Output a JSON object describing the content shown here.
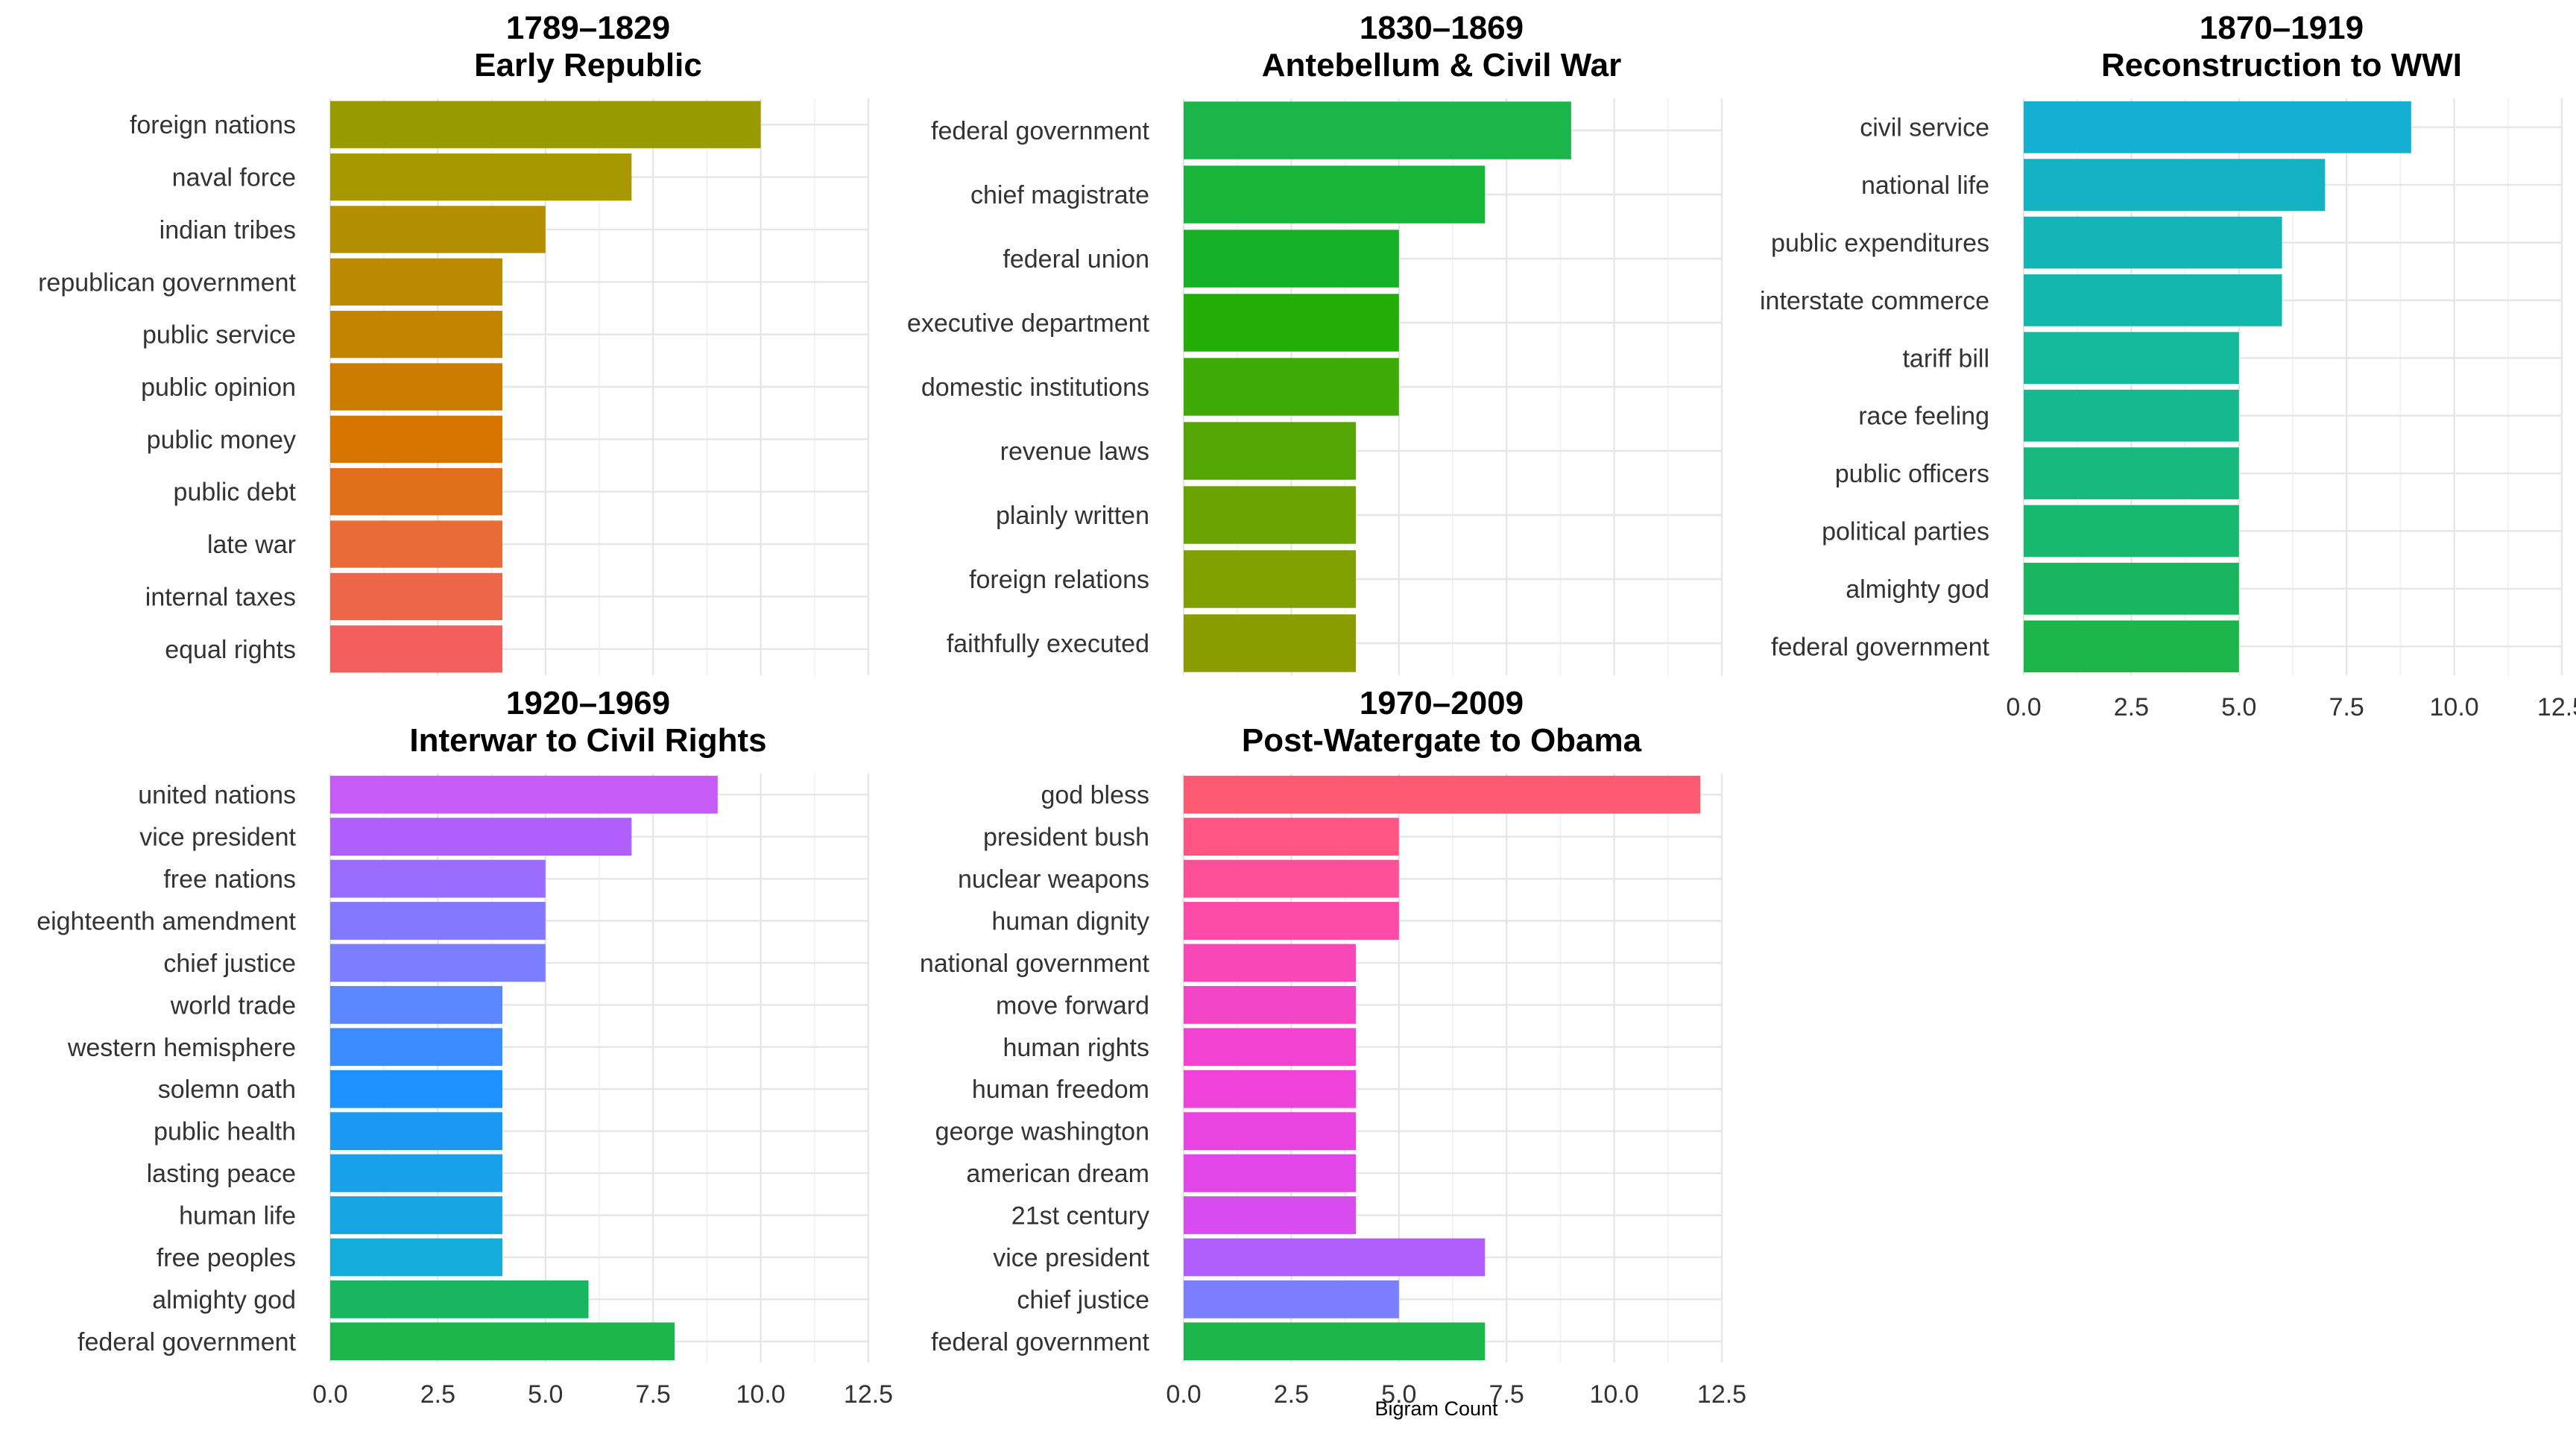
{
  "chart_data": {
    "type": "bar",
    "orientation": "horizontal",
    "xlabel": "Bigram Count",
    "xlim": [
      0,
      12.5
    ],
    "xticks": [
      "0.0",
      "2.5",
      "5.0",
      "7.5",
      "10.0",
      "12.5"
    ],
    "grid": true,
    "legend": "none",
    "panels": [
      {
        "title_line1": "1789–1829",
        "title_line2": "Early Republic",
        "show_x_axis": false,
        "categories": [
          "foreign nations",
          "naval force",
          "indian tribes",
          "republican government",
          "public service",
          "public opinion",
          "public money",
          "public debt",
          "late war",
          "internal taxes",
          "equal rights"
        ],
        "values": [
          10,
          7,
          5,
          4,
          4,
          4,
          4,
          4,
          4,
          4,
          4
        ],
        "colors": [
          "#999900",
          "#A89800",
          "#B38F00",
          "#BC8A00",
          "#C38400",
          "#CC7C00",
          "#D67500",
          "#E16E1A",
          "#E86B38",
          "#EE6649",
          "#F25F5C"
        ]
      },
      {
        "title_line1": "1830–1869",
        "title_line2": "Antebellum & Civil War",
        "show_x_axis": false,
        "categories": [
          "federal government",
          "chief magistrate",
          "federal union",
          "executive department",
          "domestic institutions",
          "revenue laws",
          "plainly written",
          "foreign relations",
          "faithfully executed"
        ],
        "values": [
          9,
          7,
          5,
          5,
          5,
          4,
          4,
          4,
          4
        ],
        "colors": [
          "#1BB54C",
          "#19B53A",
          "#16B026",
          "#22AE06",
          "#3DAA06",
          "#55A505",
          "#6BA300",
          "#7FA000",
          "#8B9C00"
        ]
      },
      {
        "title_line1": "1870–1919",
        "title_line2": "Reconstruction to WWI",
        "show_x_axis": true,
        "categories": [
          "civil service",
          "national life",
          "public expenditures",
          "interstate commerce",
          "tariff bill",
          "race feeling",
          "public officers",
          "political parties",
          "almighty god",
          "federal government"
        ],
        "values": [
          9,
          7,
          6,
          6,
          5,
          5,
          5,
          5,
          5,
          5
        ],
        "colors": [
          "#14AFD2",
          "#14B2C3",
          "#14B5B7",
          "#14B7AB",
          "#14B99C",
          "#16B98E",
          "#17B980",
          "#17B870",
          "#18B65E",
          "#1BB54C"
        ]
      },
      {
        "title_line1": "1920–1969",
        "title_line2": "Interwar to Civil Rights",
        "show_x_axis": true,
        "categories": [
          "united nations",
          "vice president",
          "free nations",
          "eighteenth amendment",
          "chief justice",
          "world trade",
          "western hemisphere",
          "solemn oath",
          "public health",
          "lasting peace",
          "human life",
          "free peoples",
          "almighty god",
          "federal government"
        ],
        "values": [
          9,
          7,
          5,
          5,
          5,
          4,
          4,
          4,
          4,
          4,
          4,
          4,
          6,
          8
        ],
        "colors": [
          "#C65BF5",
          "#B05EFC",
          "#9A6DFF",
          "#8478FF",
          "#7A7EFF",
          "#5A86FF",
          "#3C8CFF",
          "#1E90FF",
          "#1A98F2",
          "#18A0EA",
          "#16A6E4",
          "#14ADDA",
          "#18B65E",
          "#1BB54C"
        ]
      },
      {
        "title_line1": "1970–2009",
        "title_line2": "Post-Watergate to Obama",
        "show_x_axis": true,
        "categories": [
          "god bless",
          "president bush",
          "nuclear weapons",
          "human dignity",
          "national government",
          "move forward",
          "human rights",
          "human freedom",
          "george washington",
          "american dream",
          "21st century",
          "vice president",
          "chief justice",
          "federal government"
        ],
        "values": [
          12,
          5,
          5,
          5,
          4,
          4,
          4,
          4,
          4,
          4,
          4,
          7,
          5,
          7
        ],
        "colors": [
          "#FF5A73",
          "#FF5585",
          "#FD5098",
          "#FB4AA8",
          "#F848B8",
          "#F444C7",
          "#F142D2",
          "#EE42DB",
          "#E944E1",
          "#E246E8",
          "#D84CEF",
          "#B05EFC",
          "#7A7EFF",
          "#1BB54C"
        ]
      }
    ]
  }
}
